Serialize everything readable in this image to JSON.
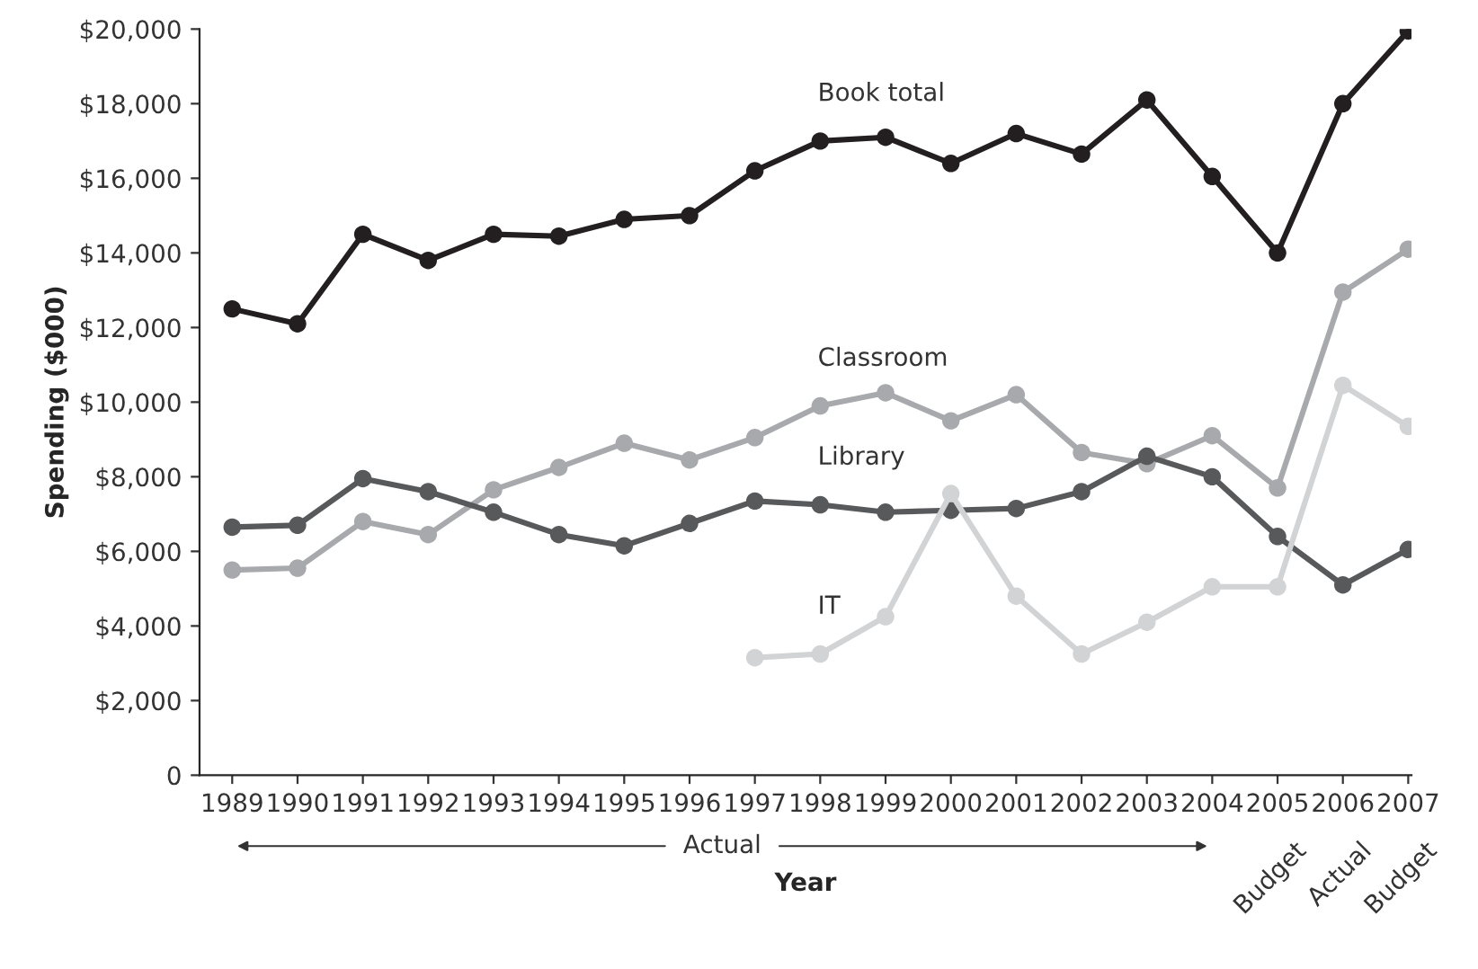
{
  "chart_data": {
    "type": "line",
    "xlabel": "Year",
    "ylabel": "Spending ($000)",
    "categories": [
      "1989",
      "1990",
      "1991",
      "1992",
      "1993",
      "1994",
      "1995",
      "1996",
      "1997",
      "1998",
      "1999",
      "2000",
      "2001",
      "2002",
      "2003",
      "2004",
      "2005",
      "2006",
      "2007"
    ],
    "series": [
      {
        "name": "Book total",
        "color": "#231f20",
        "values": [
          12500,
          12100,
          14500,
          13800,
          14500,
          14450,
          14900,
          15000,
          16200,
          17000,
          17100,
          16400,
          17200,
          16650,
          18100,
          16050,
          14000,
          18000,
          19950
        ]
      },
      {
        "name": "Classroom",
        "color": "#a7a9ac",
        "values": [
          5500,
          5550,
          6800,
          6450,
          7650,
          8250,
          8900,
          8450,
          9050,
          9900,
          10250,
          9500,
          10200,
          8650,
          8350,
          9100,
          7700,
          12950,
          14100
        ]
      },
      {
        "name": "Library",
        "color": "#58595b",
        "values": [
          6650,
          6700,
          7950,
          7600,
          7050,
          6450,
          6150,
          6750,
          7350,
          7250,
          7050,
          7100,
          7150,
          7600,
          8550,
          8000,
          6400,
          5100,
          6050
        ]
      },
      {
        "name": "IT",
        "color": "#d1d3d4",
        "values": [
          null,
          null,
          null,
          null,
          null,
          null,
          null,
          null,
          3150,
          3250,
          4250,
          7550,
          4800,
          3250,
          4100,
          5050,
          5050,
          10450,
          9350
        ]
      }
    ],
    "ylim": [
      0,
      20000
    ],
    "yticks": [
      0,
      {
        "value": 2000,
        "label": "$2,000"
      },
      {
        "value": 4000,
        "label": "$4,000"
      },
      {
        "value": 6000,
        "label": "$6,000"
      },
      {
        "value": 8000,
        "label": "$8,000"
      },
      {
        "value": 10000,
        "label": "$10,000"
      },
      {
        "value": 12000,
        "label": "$12,000"
      },
      {
        "value": 14000,
        "label": "$14,000"
      },
      {
        "value": 16000,
        "label": "$16,000"
      },
      {
        "value": 18000,
        "label": "$18,000"
      },
      {
        "value": 20000,
        "label": "$20,000"
      }
    ],
    "annotations": [
      "Actual",
      "Budget",
      "Actual",
      "Budget"
    ],
    "marker": "circle",
    "line_style": "solid",
    "grid": false,
    "legend": false
  }
}
